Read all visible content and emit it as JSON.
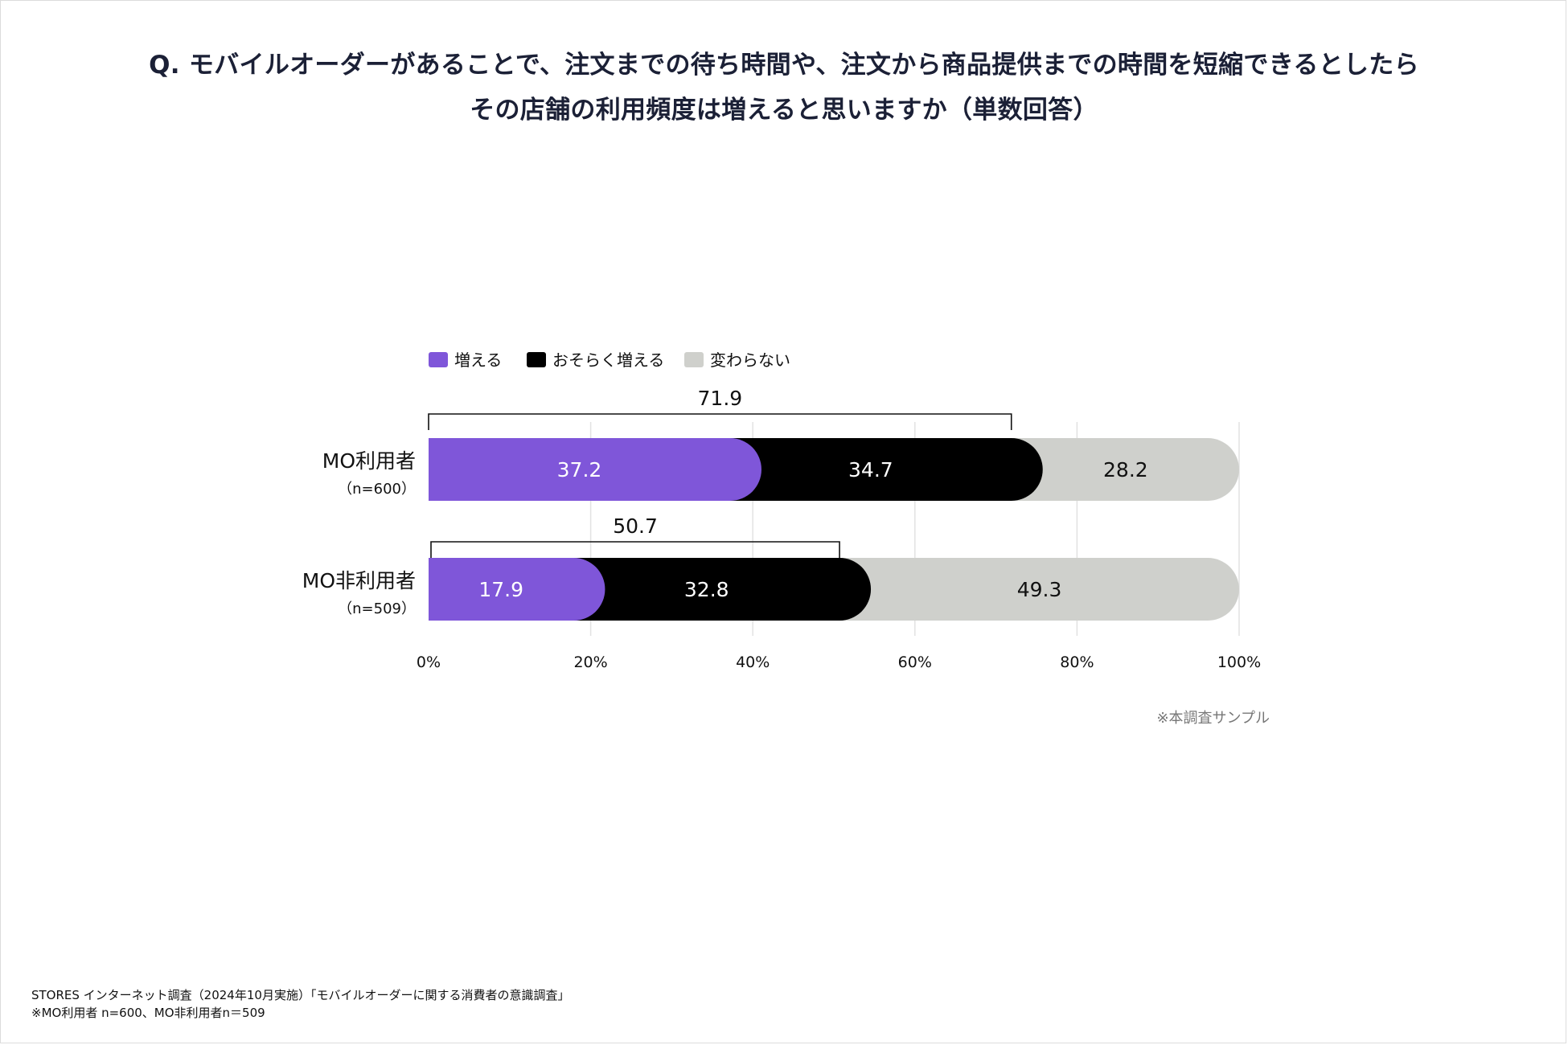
{
  "title": {
    "line1": "Q. モバイルオーダーがあることで、注文までの待ち時間や、注文から商品提供までの時間を短縮できるとしたら",
    "line2": "その店舗の利用頻度は増えると思いますか（単数回答）"
  },
  "chart_data": {
    "type": "bar",
    "orientation": "horizontal",
    "stacked": true,
    "categories": [
      {
        "label": "MO利用者",
        "sublabel": "（n=600）"
      },
      {
        "label": "MO非利用者",
        "sublabel": "（n=509）"
      }
    ],
    "series": [
      {
        "name": "増える",
        "color": "#7f56d9",
        "label_color": "#ffffff",
        "values": [
          37.2,
          17.9
        ]
      },
      {
        "name": "おそらく増える",
        "color": "#000000",
        "label_color": "#ffffff",
        "values": [
          34.7,
          32.8
        ]
      },
      {
        "name": "変わらない",
        "color": "#cfd0cc",
        "label_color": "#111111",
        "values": [
          28.2,
          49.3
        ]
      }
    ],
    "bracket_totals": [
      71.9,
      50.7
    ],
    "xlim": [
      0,
      100
    ],
    "xticks": [
      "0%",
      "20%",
      "40%",
      "60%",
      "80%",
      "100%"
    ],
    "grid": true,
    "legend_position": "top-left",
    "note": "※本調査サンプル"
  },
  "footnote": {
    "line1": "STORES インターネット調査（2024年10月実施）「モバイルオーダーに関する消費者の意識調査」",
    "line2": "※MO利用者 n=600、MO非利用者n＝509"
  }
}
